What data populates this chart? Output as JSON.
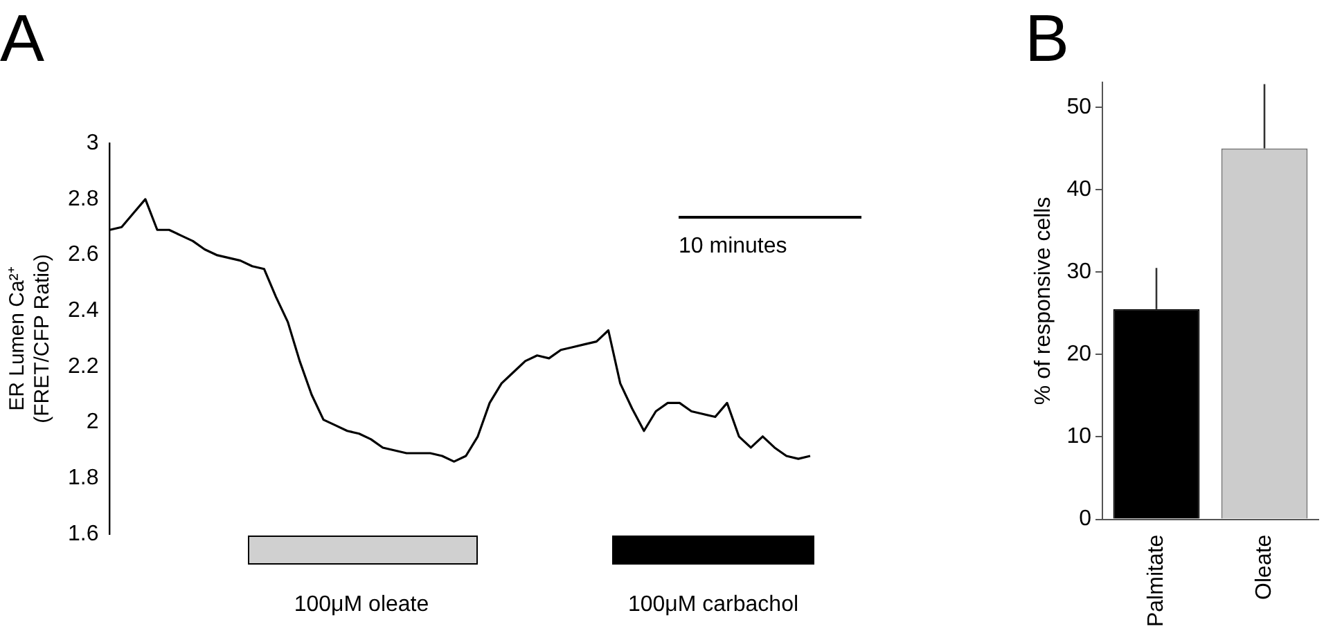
{
  "chart_data": [
    {
      "type": "line",
      "title": "A",
      "ylabel": "ER Lumen Ca²⁺\n(FRET/CFP Ratio)",
      "tick_labels": "y",
      "grid": false,
      "legend": false,
      "marker": "none",
      "line_style": "solid",
      "ylim": [
        1.6,
        3
      ],
      "yticks": [
        1.6,
        1.8,
        2,
        2.2,
        2.4,
        2.6,
        2.8,
        3
      ],
      "categories": [
        null,
        null,
        null,
        null,
        null,
        null,
        null,
        null,
        null,
        null,
        null,
        null,
        null,
        null,
        null,
        null,
        null,
        null,
        null,
        null,
        null,
        null,
        null,
        null,
        null,
        null,
        null,
        null,
        null,
        null,
        null,
        null,
        null,
        null,
        null,
        null,
        null,
        null,
        null,
        null,
        null,
        null,
        null,
        null,
        null,
        null,
        null,
        null,
        null,
        null,
        null,
        null,
        null,
        null,
        null,
        null,
        null,
        null,
        null,
        null
      ],
      "series": [
        {
          "color": "#000000",
          "values": [
            2.69,
            2.7,
            2.75,
            2.8,
            2.69,
            2.69,
            2.67,
            2.65,
            2.62,
            2.6,
            2.59,
            2.58,
            2.56,
            2.55,
            2.45,
            2.36,
            2.22,
            2.1,
            2.01,
            1.99,
            1.97,
            1.96,
            1.94,
            1.91,
            1.9,
            1.89,
            1.89,
            1.89,
            1.88,
            1.86,
            1.88,
            1.95,
            2.07,
            2.14,
            2.18,
            2.22,
            2.24,
            2.23,
            2.26,
            2.27,
            2.28,
            2.29,
            2.33,
            2.14,
            2.05,
            1.97,
            2.04,
            2.07,
            2.07,
            2.04,
            2.03,
            2.02,
            2.07,
            1.95,
            1.91,
            1.95,
            1.91,
            1.88,
            1.87,
            1.88
          ]
        }
      ],
      "annotations": [
        "10 minutes",
        "100μM oleate",
        "100μM carbachol"
      ]
    },
    {
      "type": "bar",
      "title": "B",
      "ylabel": "% of responsive cells",
      "categories": [
        "Palmitate",
        "Oleate"
      ],
      "values": [
        25.5,
        45
      ],
      "colors": [
        "#000000",
        "#cccccc"
      ],
      "errors": [
        [
          25.5,
          30.5
        ],
        [
          45,
          52.8
        ]
      ],
      "ylim": [
        0,
        53
      ],
      "yticks": [
        0,
        10,
        20,
        30,
        40,
        50
      ],
      "grid": false,
      "legend": false
    }
  ]
}
